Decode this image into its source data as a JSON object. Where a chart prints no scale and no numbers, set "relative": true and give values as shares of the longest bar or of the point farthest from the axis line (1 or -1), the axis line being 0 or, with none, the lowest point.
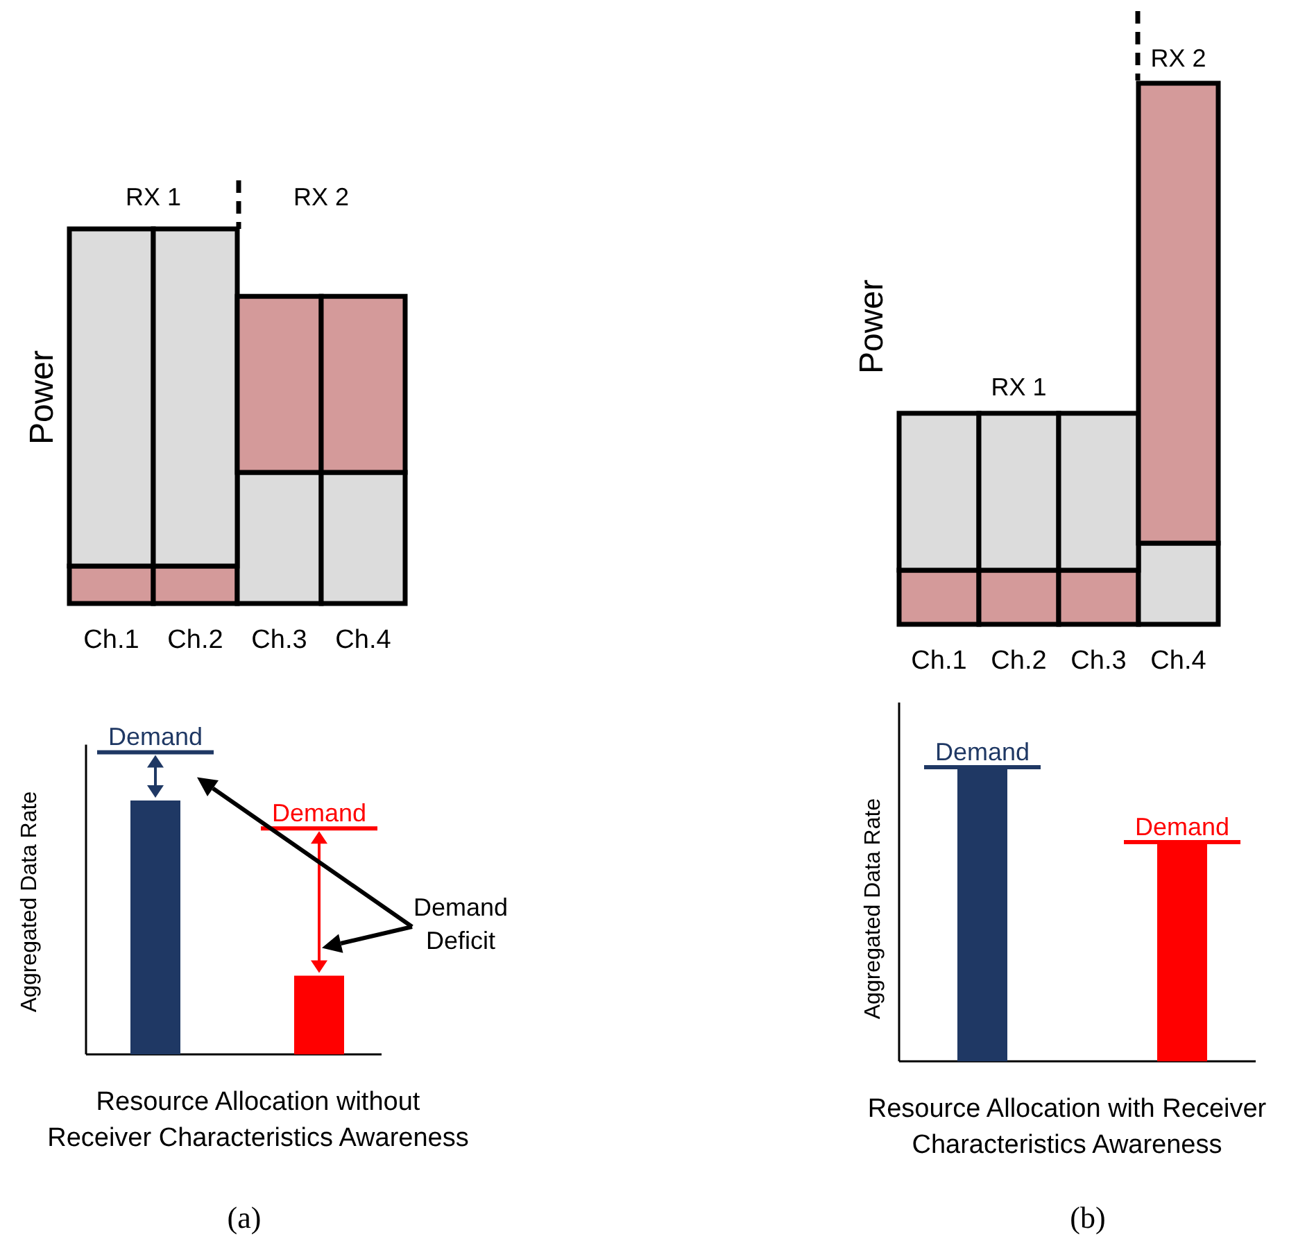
{
  "chart_data": [
    {
      "type": "bar",
      "stacked": true,
      "relative": true,
      "ylabel": "Power",
      "categories": [
        "Ch.1",
        "Ch.2",
        "Ch.3",
        "Ch.4"
      ],
      "series": [
        {
          "values": [
            0.1,
            0.1,
            0.35,
            0.35
          ],
          "colors": [
            "#d49a9a",
            "#d49a9a",
            "#dcdcdc",
            "#dcdcdc"
          ]
        },
        {
          "values": [
            0.9,
            0.9,
            0.47,
            0.47
          ],
          "colors": [
            "#dcdcdc",
            "#dcdcdc",
            "#d49a9a",
            "#d49a9a"
          ]
        }
      ],
      "annotations": [
        "RX 1",
        "RX 2"
      ]
    },
    {
      "type": "bar",
      "stacked": true,
      "relative": true,
      "ylabel": "Power",
      "categories": [
        "Ch.1",
        "Ch.2",
        "Ch.3",
        "Ch.4"
      ],
      "series": [
        {
          "values": [
            0.1,
            0.1,
            0.1,
            0.15
          ],
          "colors": [
            "#d49a9a",
            "#d49a9a",
            "#d49a9a",
            "#dcdcdc"
          ]
        },
        {
          "values": [
            0.29,
            0.29,
            0.29,
            0.85
          ],
          "colors": [
            "#dcdcdc",
            "#dcdcdc",
            "#dcdcdc",
            "#d49a9a"
          ]
        }
      ],
      "annotations": [
        "RX 1",
        "RX 2"
      ]
    },
    {
      "type": "bar",
      "relative": true,
      "ylabel": "Aggregated Data Rate",
      "xlabel": "Resource Allocation without Receiver Characteristics Awareness",
      "categories": [
        null,
        null
      ],
      "values": [
        1,
        0.31
      ],
      "colors": [
        "#1f3864",
        "#ff0000"
      ],
      "ref_lines": [
        {
          "axis": "y",
          "value": 1.19,
          "label": "Demand",
          "color": "#1f3864"
        },
        {
          "axis": "y",
          "value": 0.89,
          "label": "Demand",
          "color": "#ff0000"
        }
      ],
      "annotations": [
        "Demand Deficit",
        "(a)"
      ]
    },
    {
      "type": "bar",
      "relative": true,
      "ylabel": "Aggregated Data Rate",
      "xlabel": "Resource Allocation with Receiver Characteristics Awareness",
      "categories": [
        null,
        null
      ],
      "values": [
        1,
        0.745
      ],
      "colors": [
        "#1f3864",
        "#ff0000"
      ],
      "ref_lines": [
        {
          "axis": "y",
          "value": 1,
          "label": "Demand",
          "color": "#1f3864"
        },
        {
          "axis": "y",
          "value": 0.745,
          "label": "Demand",
          "color": "#ff0000"
        }
      ],
      "annotations": [
        "(b)"
      ]
    }
  ]
}
